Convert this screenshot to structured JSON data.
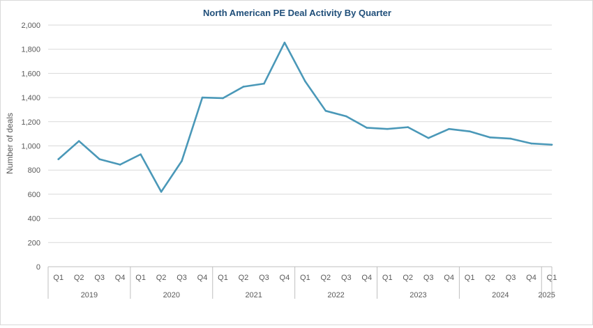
{
  "chart_data": {
    "type": "line",
    "title": "North American PE Deal Activity By Quarter",
    "xlabel": "",
    "ylabel": "Number  of deals",
    "ylim": [
      0,
      2000
    ],
    "yticks": [
      0,
      200,
      400,
      600,
      800,
      1000,
      1200,
      1400,
      1600,
      1800,
      2000
    ],
    "ytick_labels": [
      "0",
      "200",
      "400",
      "600",
      "800",
      "1,000",
      "1,200",
      "1,400",
      "1,600",
      "1,800",
      "2,000"
    ],
    "grid": true,
    "legend": "none",
    "line_color": "#4a98b8",
    "categories": [
      "Q1",
      "Q2",
      "Q3",
      "Q4",
      "Q1",
      "Q2",
      "Q3",
      "Q4",
      "Q1",
      "Q2",
      "Q3",
      "Q4",
      "Q1",
      "Q2",
      "Q3",
      "Q4",
      "Q1",
      "Q2",
      "Q3",
      "Q4",
      "Q1",
      "Q2",
      "Q3",
      "Q4",
      "Q1"
    ],
    "years": [
      {
        "label": "2019",
        "count": 4
      },
      {
        "label": "2020",
        "count": 4
      },
      {
        "label": "2021",
        "count": 4
      },
      {
        "label": "2022",
        "count": 4
      },
      {
        "label": "2023",
        "count": 4
      },
      {
        "label": "2024",
        "count": 4
      },
      {
        "label": "2025",
        "count": 1
      }
    ],
    "series": [
      {
        "name": "Number of deals",
        "values": [
          890,
          1040,
          890,
          845,
          930,
          620,
          875,
          1400,
          1395,
          1490,
          1515,
          1855,
          1535,
          1290,
          1245,
          1150,
          1140,
          1155,
          1065,
          1140,
          1120,
          1070,
          1060,
          1020,
          1010
        ]
      }
    ]
  }
}
